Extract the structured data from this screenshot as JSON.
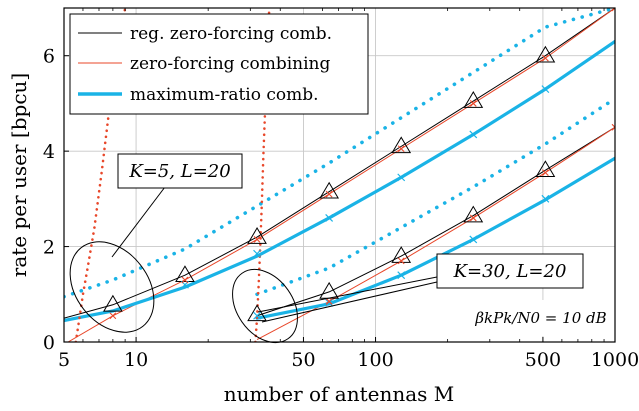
{
  "chart_data": {
    "type": "line",
    "xlabel": "number of antennas M",
    "ylabel": "rate per user [bpcu]",
    "xscale": "log",
    "xlim": [
      5,
      1000
    ],
    "ylim": [
      0,
      7
    ],
    "xticks": [
      5,
      10,
      50,
      100,
      500,
      1000
    ],
    "xtick_labels": [
      "5",
      "10",
      "50",
      "100",
      "500",
      "1000"
    ],
    "yticks": [
      0,
      2,
      4,
      6
    ],
    "ytick_labels": [
      "0",
      "2",
      "4",
      "6"
    ],
    "grid": true,
    "legend_position": "top-left",
    "legend": [
      {
        "label": "reg. zero-forcing comb.",
        "color": "#000000",
        "style": "thin-solid"
      },
      {
        "label": "zero-forcing combining",
        "color": "#e8472a",
        "style": "thin-solid"
      },
      {
        "label": "maximum-ratio comb.",
        "color": "#1ab3e6",
        "style": "thick-solid"
      }
    ],
    "annotations": [
      {
        "label": "K=5,  L=20"
      },
      {
        "label": "K=30,  L=20"
      },
      {
        "label": "βkPk/N0 = 10 dB"
      }
    ],
    "series": [
      {
        "group": "K=5, L=20",
        "type": "reg. zero-forcing (simulated)",
        "color": "#000000",
        "x": [
          5,
          8,
          16,
          32,
          64,
          128,
          256,
          512,
          1000
        ],
        "y": [
          0.5,
          0.78,
          1.4,
          2.2,
          3.15,
          4.1,
          5.05,
          6.0,
          7.0
        ]
      },
      {
        "group": "K=5, L=20",
        "type": "zero-forcing (simulated)",
        "color": "#e8472a",
        "x": [
          5.2,
          8,
          16,
          32,
          64,
          128,
          256,
          512,
          1000
        ],
        "y": [
          0,
          0.55,
          1.3,
          2.15,
          3.1,
          4.05,
          5.0,
          5.95,
          7.0
        ]
      },
      {
        "group": "K=5, L=20",
        "type": "maximum-ratio (simulated)",
        "color": "#1ab3e6",
        "x": [
          5,
          8,
          16,
          32,
          64,
          128,
          256,
          512,
          1000
        ],
        "y": [
          0.45,
          0.65,
          1.15,
          1.8,
          2.6,
          3.45,
          4.35,
          5.3,
          6.3
        ]
      },
      {
        "group": "K=5, L=20",
        "type": "maximum-ratio (bound)",
        "color": "#1ab3e6",
        "x": [
          5,
          8,
          16,
          32,
          64,
          128,
          256,
          512,
          1000
        ],
        "y": [
          0.95,
          1.3,
          1.95,
          2.85,
          3.75,
          4.7,
          5.65,
          6.6,
          7.0
        ]
      },
      {
        "group": "K=5, L=20",
        "type": "zero-forcing (bound)",
        "color": "#e8472a",
        "x": [
          5.6,
          5.8,
          6.0,
          6.3,
          6.7,
          7.2,
          8.0,
          9.0
        ],
        "y": [
          0,
          0.5,
          1.0,
          1.6,
          2.4,
          3.6,
          5.5,
          7.0
        ]
      },
      {
        "group": "K=30, L=20",
        "type": "reg. zero-forcing (simulated)",
        "color": "#000000",
        "x": [
          32,
          64,
          128,
          256,
          512,
          1000
        ],
        "y": [
          0.55,
          1.05,
          1.8,
          2.65,
          3.6,
          4.5
        ]
      },
      {
        "group": "K=30, L=20",
        "type": "zero-forcing (simulated)",
        "color": "#e8472a",
        "x": [
          32,
          64,
          128,
          256,
          512,
          1000
        ],
        "y": [
          0.05,
          0.85,
          1.7,
          2.6,
          3.55,
          4.5
        ]
      },
      {
        "group": "K=30, L=20",
        "type": "maximum-ratio (simulated)",
        "color": "#1ab3e6",
        "x": [
          32,
          64,
          128,
          256,
          512,
          1000
        ],
        "y": [
          0.5,
          0.8,
          1.4,
          2.15,
          2.98,
          3.85
        ]
      },
      {
        "group": "K=30, L=20",
        "type": "maximum-ratio (bound)",
        "color": "#1ab3e6",
        "x": [
          32,
          64,
          128,
          256,
          512,
          1000
        ],
        "y": [
          1.0,
          1.55,
          2.4,
          3.25,
          4.15,
          5.1
        ]
      },
      {
        "group": "K=30, L=20",
        "type": "zero-forcing (bound)",
        "color": "#e8472a",
        "x": [
          31.5,
          32,
          32.5,
          33,
          33.5,
          34,
          34.6,
          35.2,
          36.0
        ],
        "y": [
          0,
          0.5,
          1.2,
          2.0,
          2.9,
          3.9,
          4.9,
          6.0,
          7.0
        ]
      }
    ],
    "markers": [
      {
        "shape": "triangle",
        "group": "K=5, L=20",
        "x": [
          8,
          16,
          32,
          64,
          128,
          256,
          512
        ],
        "y": [
          0.78,
          1.4,
          2.2,
          3.15,
          4.1,
          5.05,
          6.0
        ]
      },
      {
        "shape": "triangle",
        "group": "K=30, L=20",
        "x": [
          32,
          64,
          128,
          256,
          512
        ],
        "y": [
          0.58,
          1.05,
          1.8,
          2.65,
          3.6
        ]
      },
      {
        "shape": "cross",
        "group": "K=5, L=20",
        "x": [
          16,
          32,
          64,
          128,
          256,
          512
        ],
        "y": [
          1.2,
          1.85,
          2.6,
          3.45,
          4.35,
          5.3
        ]
      },
      {
        "shape": "cross",
        "group": "K=30, L=20",
        "x": [
          32,
          64,
          128,
          256,
          512
        ],
        "y": [
          0.55,
          0.82,
          1.4,
          2.15,
          3.0
        ]
      }
    ]
  }
}
